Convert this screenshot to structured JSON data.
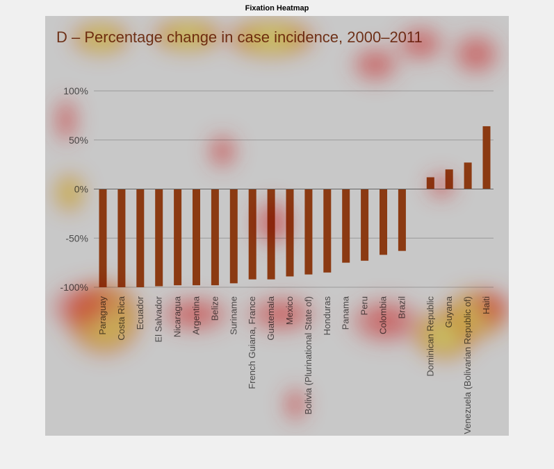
{
  "figure": {
    "title": "Fixation Heatmap"
  },
  "chart_data": {
    "type": "bar",
    "title": "D –  Percentage change in case incidence, 2000–2011",
    "xlabel": "",
    "ylabel": "",
    "ylim": [
      -100,
      100
    ],
    "yticks": [
      100,
      50,
      0,
      -50,
      -100
    ],
    "ytick_labels": [
      "100%",
      "50%",
      "0%",
      "-50%",
      "-100%"
    ],
    "categories": [
      "Paraguay",
      "Costa Rica",
      "Ecuador",
      "El Salvador",
      "Nicaragua",
      "Argentina",
      "Belize",
      "Suriname",
      "French Guiana, France",
      "Guatemala",
      "Mexico",
      "Bolivia (Plurinational State of)",
      "Honduras",
      "Panama",
      "Peru",
      "Colombia",
      "Brazil",
      "Dominican Republic",
      "Guyana",
      "Venezuela (Bolivarian Republic of)",
      "Haiti"
    ],
    "values": [
      -100,
      -100,
      -100,
      -99,
      -98,
      -98,
      -98,
      -96,
      -92,
      -92,
      -89,
      -87,
      -85,
      -75,
      -73,
      -67,
      -63,
      12,
      20,
      27,
      64
    ],
    "grid": true,
    "bar_color": "#8b3a12"
  },
  "heatmap_overlay": {
    "colors": [
      "#ffff66",
      "#ffcc33",
      "#ff3b3b"
    ]
  }
}
